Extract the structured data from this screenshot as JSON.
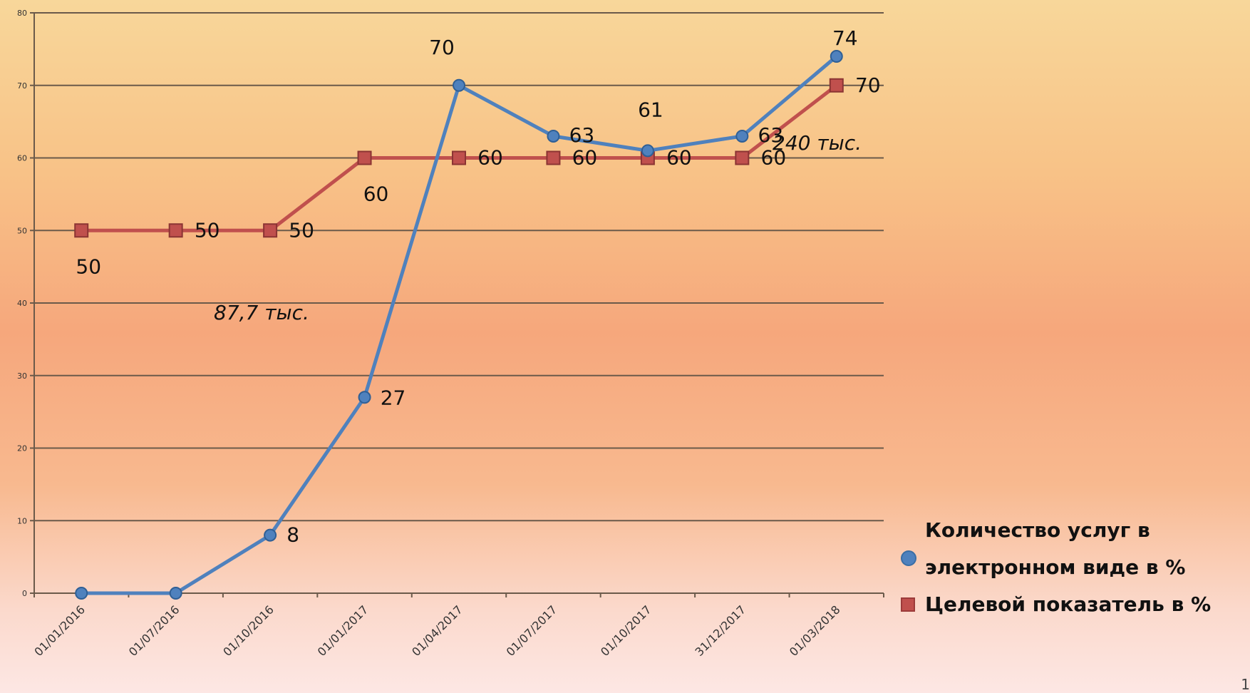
{
  "chart_data": {
    "type": "line",
    "title": "",
    "xlabel": "",
    "ylabel": "",
    "ylim": [
      0,
      80
    ],
    "yticks": [
      0,
      10,
      20,
      30,
      40,
      50,
      60,
      70,
      80
    ],
    "grid": true,
    "legend_position": "bottom-right",
    "categories": [
      "01/01/2016",
      "01/07/2016",
      "01/10/2016",
      "01/01/2017",
      "01/04/2017",
      "01/07/2017",
      "01/10/2017",
      "31/12/2017",
      "01/03/2018"
    ],
    "series": [
      {
        "name": "Количество услуг в электронном виде в %",
        "values": [
          0,
          0,
          8,
          27,
          70,
          63,
          61,
          63,
          74
        ],
        "labels": [
          "",
          "",
          "8",
          "27",
          "70",
          "63",
          "61",
          "63",
          "74"
        ],
        "color": "#4f81bd",
        "marker": "circle"
      },
      {
        "name": "Целевой показатель в %",
        "values": [
          50,
          50,
          50,
          60,
          60,
          60,
          60,
          60,
          70
        ],
        "labels": [
          "50",
          "50",
          "50",
          "60",
          "60",
          "60",
          "60",
          "60",
          "70"
        ],
        "color": "#c0504d",
        "marker": "square"
      }
    ],
    "annotations": [
      "87,7 тыс.",
      "240 тыс."
    ]
  },
  "legend": {
    "series1": "Количество услуг в электронном виде в %",
    "series2": "Целевой показатель в %"
  },
  "page_number": "1"
}
